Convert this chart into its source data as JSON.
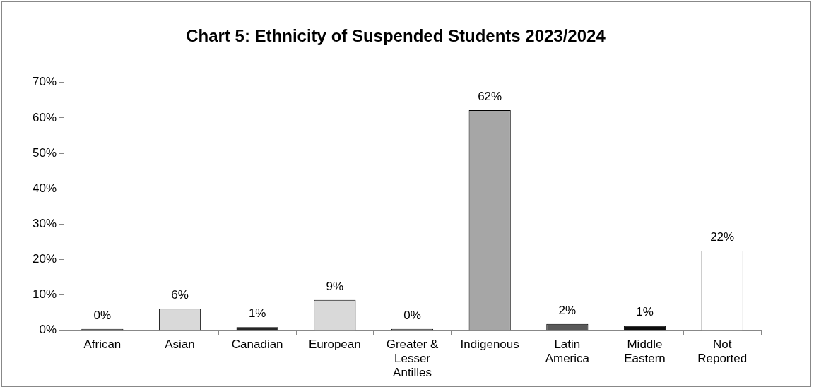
{
  "chart_data": {
    "type": "bar",
    "title": "Chart 5: Ethnicity of Suspended Students 2023/2024",
    "categories": [
      "African",
      "Asian",
      "Canadian",
      "European",
      "Greater & Lesser Antilles",
      "Indigenous",
      "Latin America",
      "Middle Eastern",
      "Not Reported"
    ],
    "values": [
      0.4,
      6.1,
      0.9,
      8.6,
      0.4,
      62.2,
      1.8,
      1.3,
      22.5
    ],
    "value_labels": [
      "0%",
      "6%",
      "1%",
      "9%",
      "0%",
      "62%",
      "2%",
      "1%",
      "22%"
    ],
    "colors": [
      "#404040",
      "#d9d9d9",
      "#262626",
      "#d9d9d9",
      "#595959",
      "#a6a6a6",
      "#595959",
      "#0d0d0d",
      "#ffffff"
    ],
    "ylim": [
      0,
      70
    ],
    "yticks": [
      {
        "value": 0,
        "label": "0%"
      },
      {
        "value": 10,
        "label": "10%"
      },
      {
        "value": 20,
        "label": "20%"
      },
      {
        "value": 30,
        "label": "30%"
      },
      {
        "value": 40,
        "label": "40%"
      },
      {
        "value": 50,
        "label": "50%"
      },
      {
        "value": 60,
        "label": "60%"
      },
      {
        "value": 70,
        "label": "70%"
      }
    ],
    "grid": false,
    "legend": false
  }
}
